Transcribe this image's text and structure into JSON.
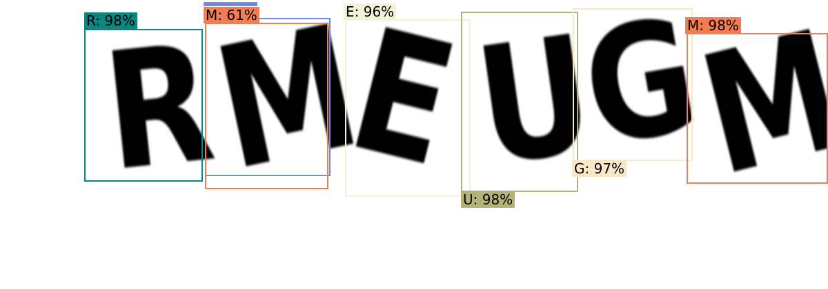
{
  "captcha_glyphs": [
    {
      "char": "R"
    },
    {
      "char": "M"
    },
    {
      "char": "E"
    },
    {
      "char": "U"
    },
    {
      "char": "G"
    },
    {
      "char": "M"
    }
  ],
  "detections": [
    {
      "label": "R: 98%",
      "char": "R",
      "confidence": 0.98,
      "color": "#0b8580"
    },
    {
      "label": "",
      "char": "M",
      "confidence": null,
      "color": "#6b8fd8"
    },
    {
      "label": "M: 61%",
      "char": "M",
      "confidence": 0.61,
      "color": "#f47c52"
    },
    {
      "label": "E: 96%",
      "char": "E",
      "confidence": 0.96,
      "color": "#f2f2d8"
    },
    {
      "label": "U: 98%",
      "char": "U",
      "confidence": 0.98,
      "color": "#b4b274"
    },
    {
      "label": "G: 97%",
      "char": "G",
      "confidence": 0.97,
      "color": "#f8e8c8"
    },
    {
      "label": "M: 98%",
      "char": "M",
      "confidence": 0.98,
      "color": "#f47c52"
    }
  ]
}
